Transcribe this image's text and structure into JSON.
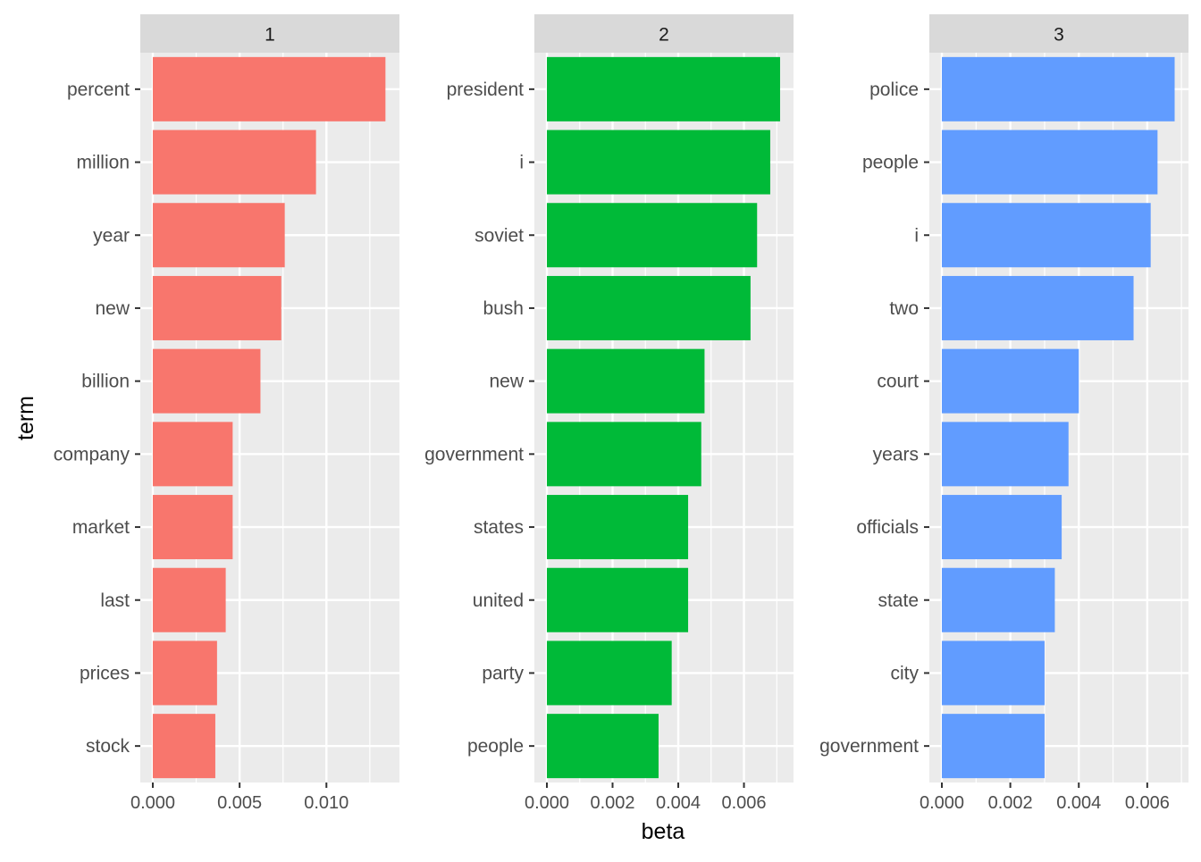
{
  "chart_data": {
    "type": "bar",
    "orientation": "horizontal",
    "xlabel": "beta",
    "ylabel": "term",
    "grid": true,
    "legend": "none",
    "panels": [
      {
        "strip_label": "1",
        "color": "#F8766D",
        "xlim": [
          0,
          0.014
        ],
        "xticks": [
          0.0,
          0.005,
          0.01
        ],
        "xtick_labels": [
          "0.000",
          "0.005",
          "0.010"
        ],
        "categories": [
          "percent",
          "million",
          "year",
          "new",
          "billion",
          "company",
          "market",
          "last",
          "prices",
          "stock"
        ],
        "values": [
          0.0134,
          0.0094,
          0.0076,
          0.0074,
          0.0062,
          0.0046,
          0.0046,
          0.0042,
          0.0037,
          0.0036
        ]
      },
      {
        "strip_label": "2",
        "color": "#00BA38",
        "xlim": [
          0,
          0.0074
        ],
        "xticks": [
          0.0,
          0.002,
          0.004,
          0.006
        ],
        "xtick_labels": [
          "0.000",
          "0.002",
          "0.004",
          "0.006"
        ],
        "categories": [
          "president",
          "i",
          "soviet",
          "bush",
          "new",
          "government",
          "states",
          "united",
          "party",
          "people"
        ],
        "values": [
          0.0071,
          0.0068,
          0.0064,
          0.0062,
          0.0048,
          0.0047,
          0.0043,
          0.0043,
          0.0038,
          0.0034
        ]
      },
      {
        "strip_label": "3",
        "color": "#619CFF",
        "xlim": [
          0,
          0.0071
        ],
        "xticks": [
          0.0,
          0.002,
          0.004,
          0.006
        ],
        "xtick_labels": [
          "0.000",
          "0.002",
          "0.004",
          "0.006"
        ],
        "categories": [
          "police",
          "people",
          "i",
          "two",
          "court",
          "years",
          "officials",
          "state",
          "city",
          "government"
        ],
        "values": [
          0.0068,
          0.0063,
          0.0061,
          0.0056,
          0.004,
          0.0037,
          0.0035,
          0.0033,
          0.003,
          0.003
        ]
      }
    ]
  }
}
